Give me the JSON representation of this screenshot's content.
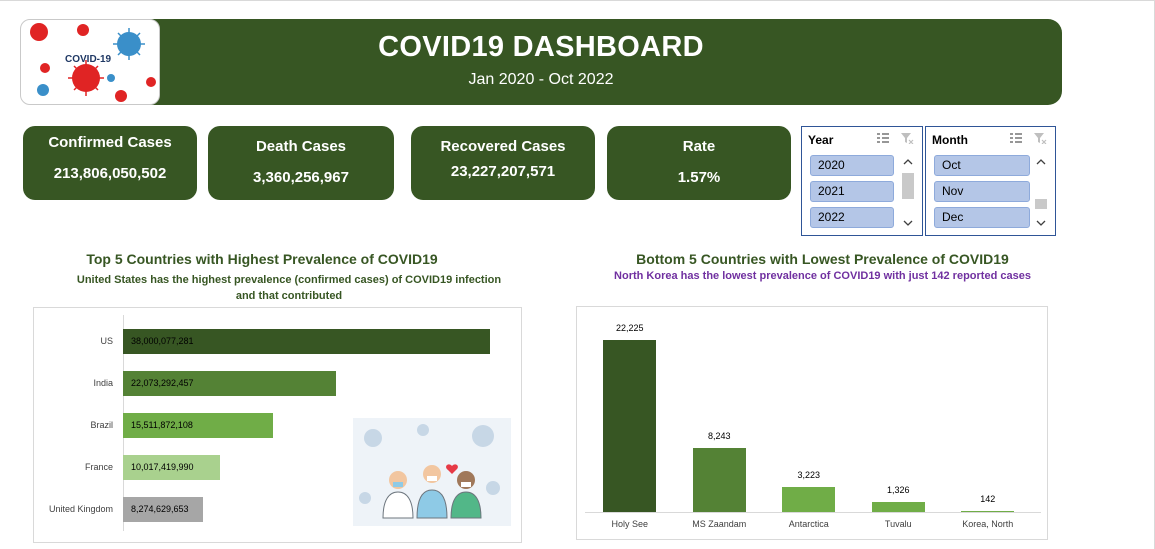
{
  "header": {
    "title": "COVID19 DASHBOARD",
    "subtitle": "Jan 2020 - Oct 2022",
    "logo_text": "COVID-19"
  },
  "kpis": [
    {
      "label": "Confirmed Cases",
      "value": "213,806,050,502"
    },
    {
      "label": "Death Cases",
      "value": "3,360,256,967"
    },
    {
      "label": "Recovered Cases",
      "value": "23,227,207,571"
    },
    {
      "label": "Rate",
      "value": "1.57%"
    }
  ],
  "slicers": {
    "year": {
      "title": "Year",
      "items": [
        "2020",
        "2021",
        "2022"
      ]
    },
    "month": {
      "title": "Month",
      "items": [
        "Oct",
        "Nov",
        "Dec"
      ]
    }
  },
  "top5": {
    "title": "Top 5 Countries with Highest Prevalence of COVID19",
    "note_line1": "United States has the highest prevalence (confirmed cases) of COVID19 infection",
    "note_line2": "and that contributed"
  },
  "bottom5": {
    "title": "Bottom 5 Countries with Lowest Prevalence of COVID19",
    "note": "North Korea has the lowest prevalence of COVID19 with just  142 reported cases"
  },
  "colors": {
    "dark_green": "#375623",
    "mid_green": "#548235",
    "light_green": "#70ad47",
    "pale_green": "#a9d18e",
    "grey": "#a6a6a6",
    "purple_note": "#7030a0",
    "slicer_fill": "#b4c6e7"
  },
  "chart_data": [
    {
      "type": "bar",
      "orientation": "horizontal",
      "categories": [
        "US",
        "India",
        "Brazil",
        "France",
        "United Kingdom"
      ],
      "values": [
        38000077281,
        22073292457,
        15511872108,
        10017419990,
        8274629653
      ],
      "data_labels": [
        "38,000,077,281",
        "22,073,292,457",
        "15,511,872,108",
        "10,017,419,990",
        "8,274,629,653"
      ]
    },
    {
      "type": "bar",
      "orientation": "vertical",
      "categories": [
        "Holy See",
        "MS Zaandam",
        "Antarctica",
        "Tuvalu",
        "Korea, North"
      ],
      "values": [
        22225,
        8243,
        3223,
        1326,
        142
      ],
      "data_labels": [
        "22,225",
        "8,243",
        "3,223",
        "1,326",
        "142"
      ]
    }
  ]
}
